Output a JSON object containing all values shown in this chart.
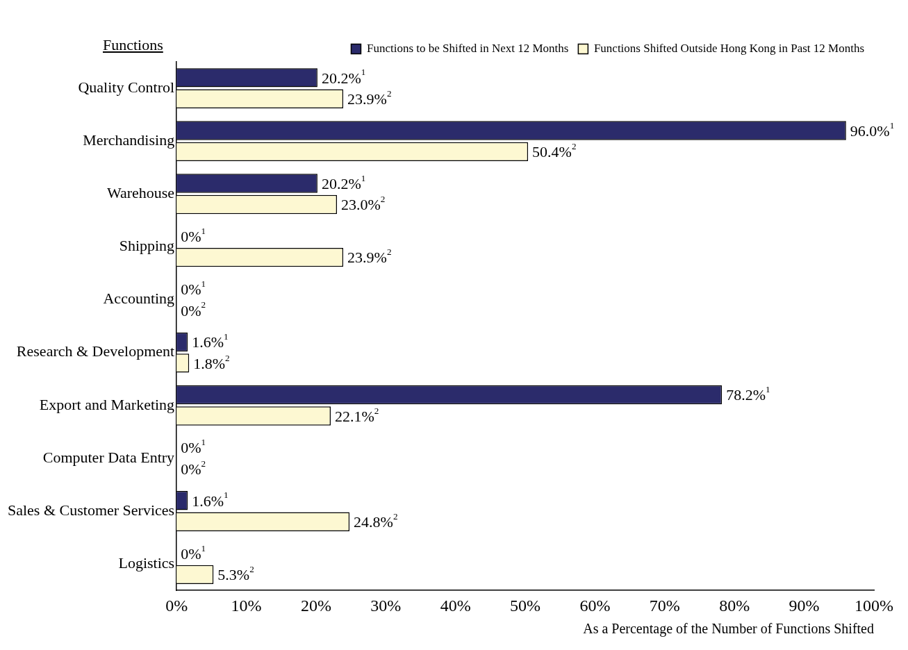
{
  "chart_data": {
    "type": "bar",
    "orientation": "horizontal",
    "ylabel": "Functions",
    "xlabel": "As a Percentage of the Number of Functions Shifted",
    "categories": [
      "Quality Control",
      "Merchandising",
      "Warehouse",
      "Shipping",
      "Accounting",
      "Research & Development",
      "Export and Marketing",
      "Computer Data Entry",
      "Sales & Customer Services",
      "Logistics"
    ],
    "series": [
      {
        "name": "Functions to be Shifted in Next 12 Months",
        "color": "#2b2b6b",
        "values": [
          20.2,
          96.0,
          20.2,
          0,
          0,
          1.6,
          78.2,
          0,
          1.6,
          0
        ],
        "value_labels": [
          "20.2%$^{1}$",
          "96.0%$^{1}$",
          "20.2%$^{1}$",
          "0%$^{1}$",
          "0%$^{1}$",
          "1.6%$^{1}$",
          "78.2%$^{1}$",
          "0%$^{1}$",
          "1.6%$^{1}$",
          "0%$^{1}$"
        ]
      },
      {
        "name": "Functions Shifted Outside Hong Kong in Past 12 Months",
        "color": "#fdf8d2",
        "values": [
          23.9,
          50.4,
          23.0,
          23.9,
          0,
          1.8,
          22.1,
          0,
          24.8,
          5.3
        ],
        "value_labels": [
          "23.9%$^{2}$",
          "50.4%$^{2}$",
          "23.0%$^{2}$",
          "23.9%$^{2}$",
          "0%$^{2}$",
          "1.8%$^{2}$",
          "22.1%$^{2}$",
          "0%$^{2}$",
          "24.8%$^{2}$",
          "5.3%$^{2}$"
        ]
      }
    ],
    "xlim": [
      0,
      100
    ],
    "xticks": [
      {
        "value": 0,
        "label": "0%"
      },
      {
        "value": 10,
        "label": "10%"
      },
      {
        "value": 20,
        "label": "20%"
      },
      {
        "value": 30,
        "label": "30%"
      },
      {
        "value": 40,
        "label": "40%"
      },
      {
        "value": 50,
        "label": "50%"
      },
      {
        "value": 60,
        "label": "60%"
      },
      {
        "value": 70,
        "label": "70%"
      },
      {
        "value": 80,
        "label": "80%"
      },
      {
        "value": 90,
        "label": "90%"
      },
      {
        "value": 100,
        "label": "100%"
      }
    ],
    "grid": false,
    "legend": "top right"
  }
}
